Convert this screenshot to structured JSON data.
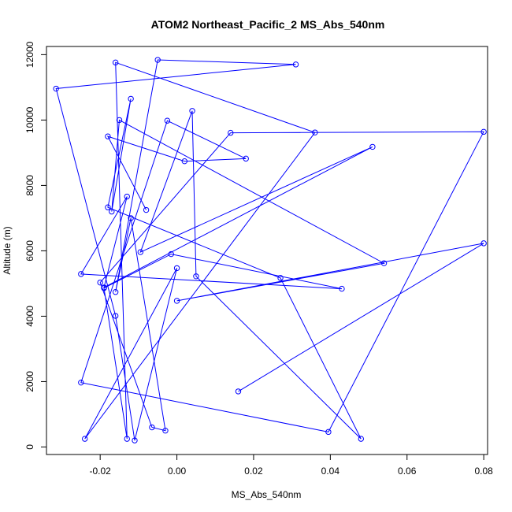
{
  "chart_data": {
    "type": "line",
    "title": "ATOM2 Northeast_Pacific_2 MS_Abs_540nm",
    "xlabel": "MS_Abs_540nm",
    "ylabel": "Altitude (m)",
    "xlim": [
      -0.034,
      0.081
    ],
    "ylim": [
      -230,
      12250
    ],
    "xticks": [
      -0.02,
      0.0,
      0.02,
      0.04,
      0.06,
      0.08
    ],
    "xtick_labels": [
      "-0.02",
      "0.00",
      "0.02",
      "0.04",
      "0.06",
      "0.08"
    ],
    "yticks": [
      0,
      2000,
      4000,
      6000,
      8000,
      10000,
      12000
    ],
    "ytick_labels": [
      "0",
      "2000",
      "4000",
      "6000",
      "8000",
      "10000",
      "12000"
    ],
    "grid": false,
    "legend": "none",
    "color": "#0000ff",
    "series": [
      {
        "x": [
          0.016,
          0.08,
          0.0,
          0.054,
          -0.015,
          -0.017,
          -0.012,
          -0.018,
          0.027,
          0.048,
          0.005,
          0.004,
          -0.0095,
          0.051,
          -0.019,
          -0.013,
          -0.025,
          0.043,
          -0.0015,
          -0.019,
          -0.013,
          -0.016,
          0.036,
          -0.024,
          0.0,
          -0.011,
          -0.016,
          -0.0315,
          0.031,
          -0.005,
          -0.016,
          -0.012,
          -0.003,
          -0.0065,
          -0.02,
          0.014,
          0.08,
          0.0395,
          -0.025,
          -0.0025,
          0.018,
          0.002,
          -0.018,
          -0.008
        ],
        "y": [
          1700,
          6230,
          4470,
          5620,
          10000,
          7200,
          10650,
          7330,
          5170,
          250,
          5220,
          10280,
          5960,
          9180,
          4880,
          7660,
          5290,
          4840,
          5900,
          4860,
          250,
          11760,
          9620,
          250,
          5470,
          200,
          4010,
          10960,
          11700,
          11840,
          4740,
          7000,
          500,
          600,
          5030,
          9610,
          9640,
          460,
          1970,
          9980,
          8820,
          8740,
          9500,
          7250
        ]
      }
    ]
  }
}
